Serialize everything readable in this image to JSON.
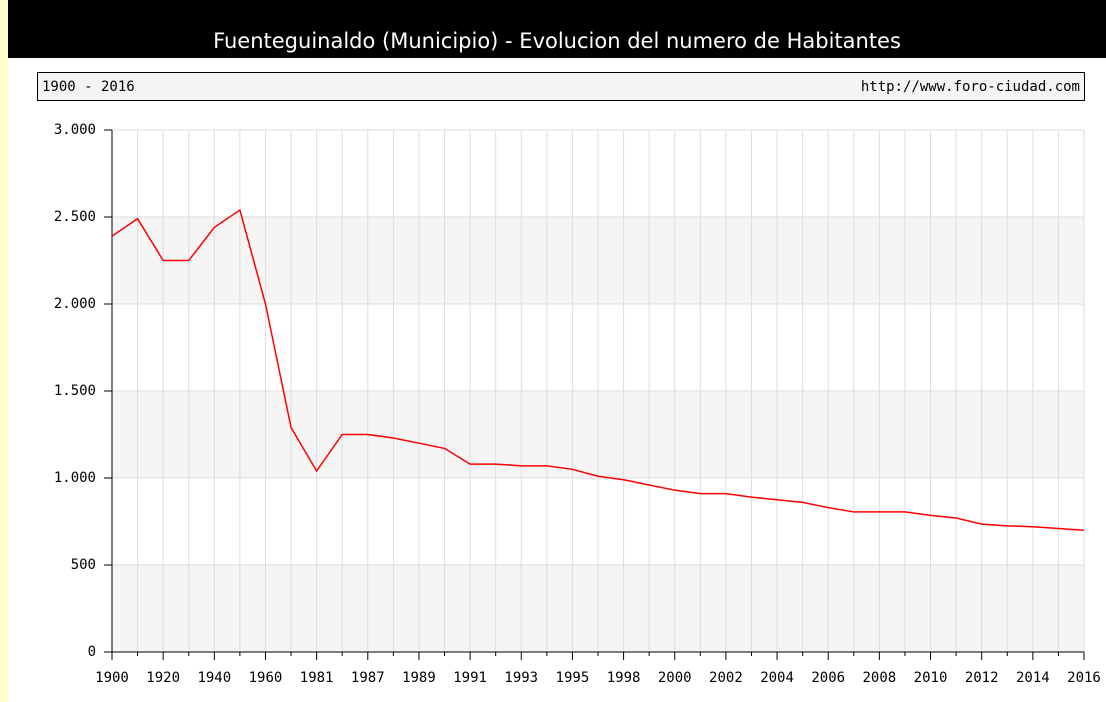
{
  "chart_data": {
    "type": "line",
    "title": "Fuenteguinaldo (Municipio) - Evolucion del numero de Habitantes",
    "subtitle": "1900 - 2016",
    "source": "http://www.foro-ciudad.com",
    "categories": [
      "1900",
      null,
      "1920",
      null,
      "1940",
      null,
      "1960",
      null,
      "1981",
      null,
      "1987",
      null,
      "1989",
      null,
      "1991",
      null,
      "1993",
      null,
      "1995",
      null,
      "1998",
      null,
      "2000",
      null,
      "2002",
      null,
      "2004",
      null,
      "2006",
      null,
      "2008",
      null,
      "2010",
      null,
      "2012",
      null,
      "2014",
      null,
      "2016"
    ],
    "series": [
      {
        "name": "Habitantes",
        "color": "#ff0000",
        "values": [
          2390,
          2490,
          2250,
          2250,
          2440,
          2540,
          2000,
          1290,
          1040,
          1250,
          1250,
          1230,
          1200,
          1170,
          1080,
          1080,
          1070,
          1070,
          1050,
          1010,
          990,
          960,
          930,
          910,
          910,
          890,
          875,
          860,
          830,
          805,
          805,
          805,
          785,
          770,
          735,
          725,
          720,
          710,
          700
        ]
      }
    ],
    "ylim": [
      0,
      3000
    ],
    "yticks": [
      {
        "value": 0,
        "label": "0"
      },
      {
        "value": 500,
        "label": "500"
      },
      {
        "value": 1000,
        "label": "1.000"
      },
      {
        "value": 1500,
        "label": "1.500"
      },
      {
        "value": 2000,
        "label": "2.000"
      },
      {
        "value": 2500,
        "label": "2.500"
      },
      {
        "value": 3000,
        "label": "3.000"
      }
    ],
    "grid": true
  }
}
